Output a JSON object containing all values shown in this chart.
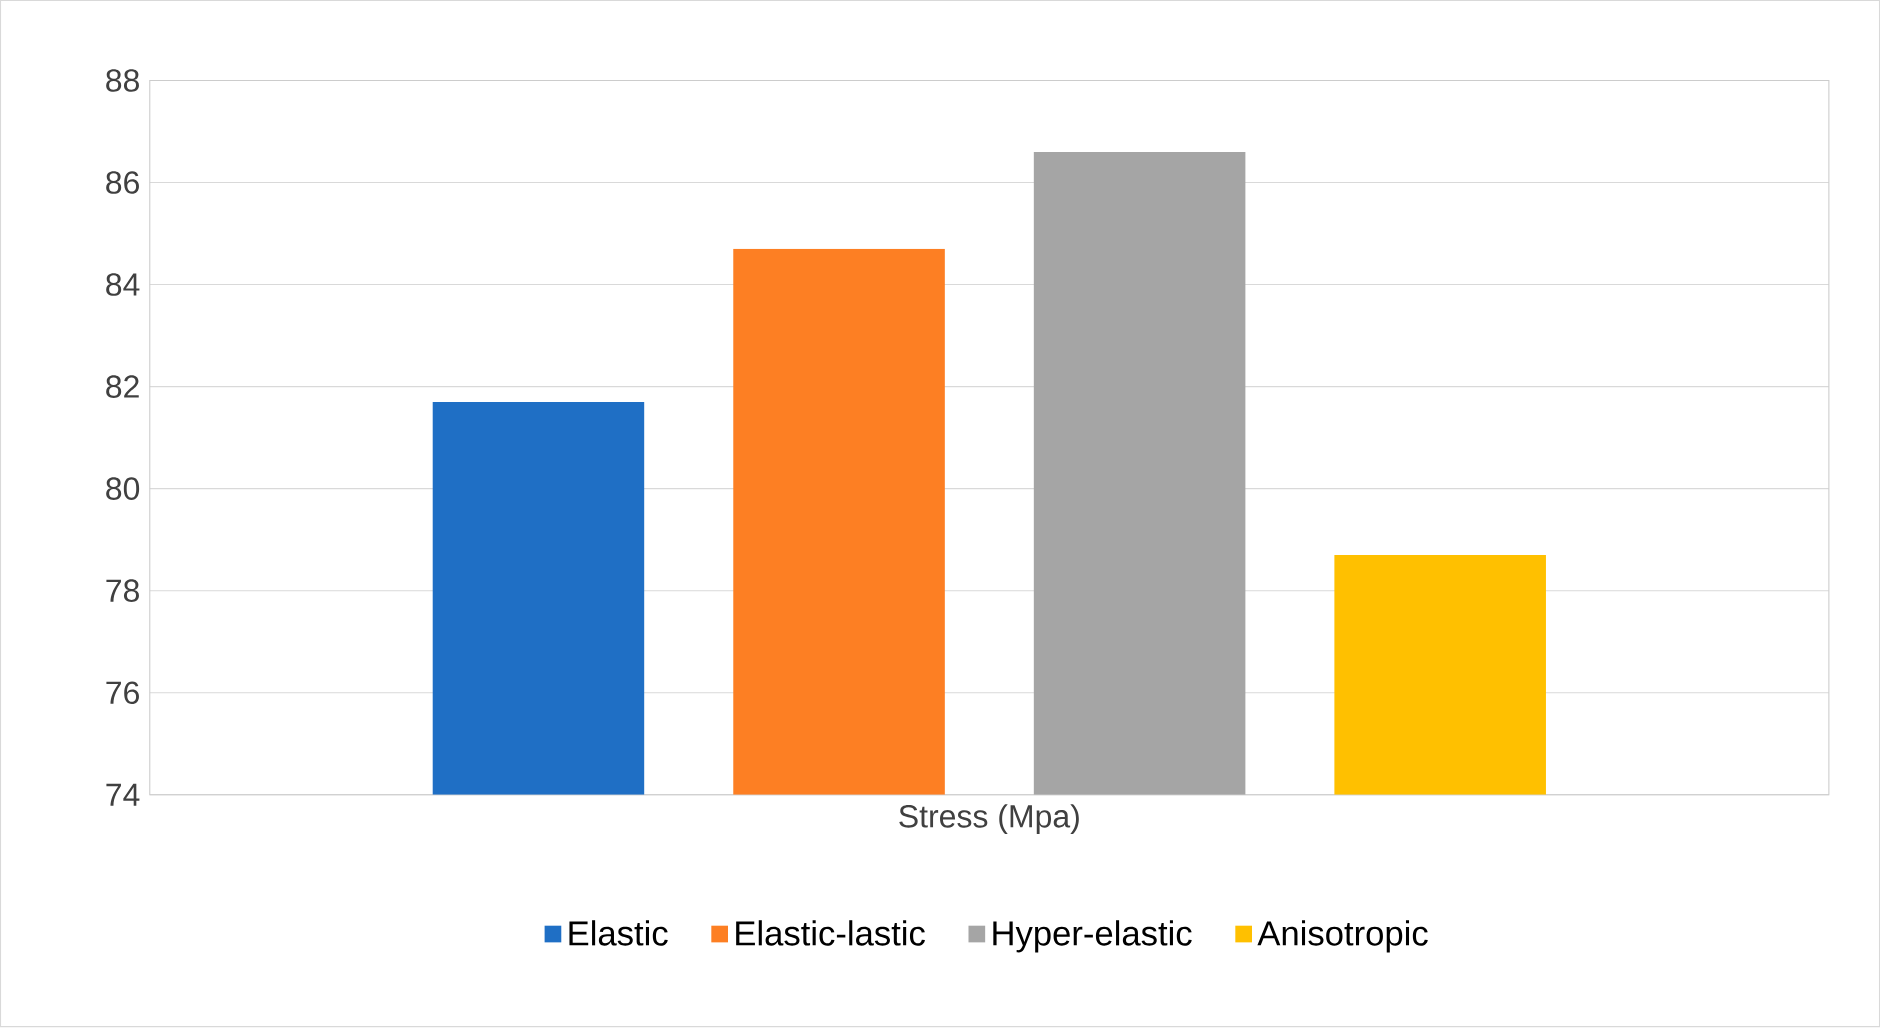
{
  "chart_data": {
    "type": "bar",
    "categories": [
      "Stress (Mpa)"
    ],
    "series": [
      {
        "name": "Elastic",
        "color": "#1f6fc5",
        "values": [
          81.7
        ]
      },
      {
        "name": "Elastic-lastic",
        "color": "#fd7f23",
        "values": [
          84.7
        ]
      },
      {
        "name": "Hyper-elastic",
        "color": "#a5a5a5",
        "values": [
          86.6
        ]
      },
      {
        "name": "Anisotropic",
        "color": "#ffc000",
        "values": [
          78.7
        ]
      }
    ],
    "ylim": [
      74,
      88
    ],
    "yticks": [
      74,
      76,
      78,
      80,
      82,
      84,
      86,
      88
    ],
    "grid": "y",
    "legend": "bottom"
  }
}
